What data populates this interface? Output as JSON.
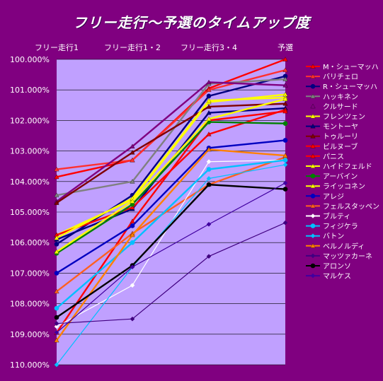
{
  "chart_data": {
    "type": "line",
    "title": "フリー走行〜予選のタイムアップ度",
    "categories": [
      "フリー走行1",
      "フリー走行1・2",
      "フリー走行3・4",
      "予選"
    ],
    "y_tick_labels": [
      "100.000%",
      "101.000%",
      "102.000%",
      "103.000%",
      "104.000%",
      "105.000%",
      "106.000%",
      "107.000%",
      "108.000%",
      "109.000%",
      "110.000%"
    ],
    "ylim": [
      100,
      110
    ],
    "y_reversed": true,
    "plot_background": "#c0a0ff",
    "chart_background": "#800080",
    "grid": true,
    "legend_position": "right",
    "series": [
      {
        "name": "M・シューマッハ",
        "color": "#ff0000",
        "marker": "triangle",
        "values": [
          103.85,
          103.3,
          100.95,
          100.0
        ]
      },
      {
        "name": "バリチェロ",
        "color": "#ff3030",
        "marker": "triangle",
        "values": [
          103.6,
          103.3,
          101.0,
          100.35
        ]
      },
      {
        "name": "R・シューマッハ",
        "color": "#000080",
        "marker": "circle",
        "values": [
          106.05,
          104.45,
          101.2,
          100.55
        ]
      },
      {
        "name": "ハッキネン",
        "color": "#808080",
        "marker": "triangle",
        "values": [
          104.45,
          104.0,
          100.8,
          100.65
        ]
      },
      {
        "name": "クルサード",
        "color": "#800080",
        "marker": "triangle",
        "values": [
          104.65,
          102.85,
          100.75,
          100.85
        ]
      },
      {
        "name": "フレンツェン",
        "color": "#ffff00",
        "marker": "triangle",
        "values": [
          105.75,
          104.6,
          101.4,
          101.15
        ]
      },
      {
        "name": "モントーヤ",
        "color": "#000080",
        "marker": "triangle",
        "values": [
          105.9,
          104.9,
          101.75,
          101.6
        ]
      },
      {
        "name": "トゥルーリ",
        "color": "#800000",
        "marker": "triangle",
        "values": [
          104.7,
          103.05,
          101.55,
          101.45
        ]
      },
      {
        "name": "ビルヌーブ",
        "color": "#ff0000",
        "marker": "triangle",
        "values": [
          105.75,
          104.85,
          102.45,
          101.65
        ]
      },
      {
        "name": "パニス",
        "color": "#ff0000",
        "marker": "triangle",
        "values": [
          108.95,
          105.3,
          102.0,
          101.7
        ]
      },
      {
        "name": "ハイドフェルド",
        "color": "#ffff00",
        "marker": "triangle",
        "values": [
          105.85,
          104.55,
          101.35,
          101.25
        ]
      },
      {
        "name": "アーバイン",
        "color": "#008000",
        "marker": "circle",
        "values": [
          106.35,
          104.75,
          102.05,
          102.1
        ]
      },
      {
        "name": "ライッコネン",
        "color": "#ffff00",
        "marker": "triangle",
        "values": [
          106.3,
          104.65,
          101.95,
          101.3
        ]
      },
      {
        "name": "アレジ",
        "color": "#0000c0",
        "marker": "circle",
        "values": [
          107.0,
          105.45,
          102.9,
          102.65
        ]
      },
      {
        "name": "フェルスタッペン",
        "color": "#ff6020",
        "marker": "triangle",
        "values": [
          107.6,
          105.7,
          104.1,
          103.2
        ]
      },
      {
        "name": "ブルティ",
        "color": "#ffffff",
        "marker": "diamond",
        "values": [
          108.75,
          107.4,
          103.35,
          103.3
        ]
      },
      {
        "name": "フィジケラ",
        "color": "#00c0ff",
        "marker": "circle",
        "values": [
          108.15,
          106.0,
          103.6,
          103.3
        ]
      },
      {
        "name": "バトン",
        "color": "#00c0ff",
        "marker": "diamond",
        "values": [
          110.0,
          106.8,
          103.9,
          103.45
        ]
      },
      {
        "name": "ベルノルディ",
        "color": "#ff8000",
        "marker": "triangle",
        "values": [
          109.2,
          105.75,
          102.95,
          103.15
        ]
      },
      {
        "name": "マッツァカーネ",
        "color": "#400080",
        "marker": "diamond",
        "values": [
          108.65,
          108.5,
          106.45,
          105.35
        ]
      },
      {
        "name": "アロンソ",
        "color": "#000000",
        "marker": "circle",
        "values": [
          108.45,
          106.75,
          104.1,
          104.25
        ]
      },
      {
        "name": "マルケス",
        "color": "#4000a0",
        "marker": "diamond",
        "values": [
          108.95,
          106.8,
          105.4,
          104.05
        ]
      }
    ]
  }
}
